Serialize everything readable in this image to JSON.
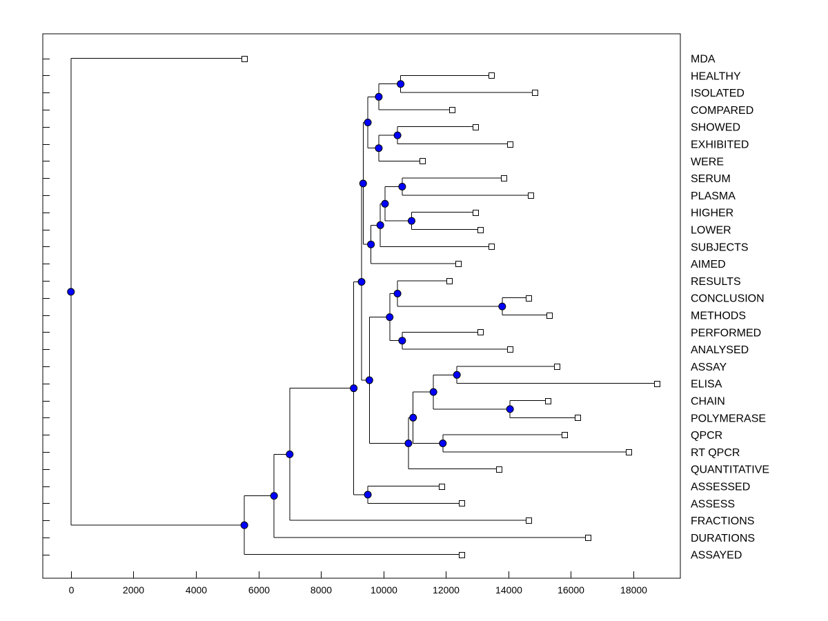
{
  "chart_data": {
    "type": "dendrogram",
    "title": "",
    "xlabel": "",
    "ylabel": "",
    "xlim": [
      -900,
      19500
    ],
    "x_ticks": [
      0,
      2000,
      4000,
      6000,
      8000,
      10000,
      12000,
      14000,
      16000,
      18000
    ],
    "grid": false,
    "leaves": [
      {
        "label": "MDA",
        "x": 5550
      },
      {
        "label": "HEALTHY",
        "x": 13450
      },
      {
        "label": "ISOLATED",
        "x": 14850
      },
      {
        "label": "COMPARED",
        "x": 12200
      },
      {
        "label": "SHOWED",
        "x": 12950
      },
      {
        "label": "EXHIBITED",
        "x": 14050
      },
      {
        "label": "WERE",
        "x": 11250
      },
      {
        "label": "SERUM",
        "x": 13850
      },
      {
        "label": "PLASMA",
        "x": 14700
      },
      {
        "label": "HIGHER",
        "x": 12950
      },
      {
        "label": "LOWER",
        "x": 13100
      },
      {
        "label": "SUBJECTS",
        "x": 13450
      },
      {
        "label": "AIMED",
        "x": 12400
      },
      {
        "label": "RESULTS",
        "x": 12100
      },
      {
        "label": "CONCLUSION",
        "x": 14650
      },
      {
        "label": "METHODS",
        "x": 15300
      },
      {
        "label": "PERFORMED",
        "x": 13100
      },
      {
        "label": "ANALYSED",
        "x": 14050
      },
      {
        "label": "ASSAY",
        "x": 15550
      },
      {
        "label": "ELISA",
        "x": 18750
      },
      {
        "label": "CHAIN",
        "x": 15250
      },
      {
        "label": "POLYMERASE",
        "x": 16200
      },
      {
        "label": "QPCR",
        "x": 15800
      },
      {
        "label": "RT QPCR",
        "x": 17850
      },
      {
        "label": "QUANTITATIVE",
        "x": 13700
      },
      {
        "label": "ASSESSED",
        "x": 11850
      },
      {
        "label": "ASSESS",
        "x": 12500
      },
      {
        "label": "FRACTIONS",
        "x": 14650
      },
      {
        "label": "DURATIONS",
        "x": 16550
      },
      {
        "label": "ASSAYED",
        "x": 12500
      }
    ],
    "merges": [
      {
        "id": "n_healthy_isolated",
        "x": 10550,
        "children": [
          "HEALTHY",
          "ISOLATED"
        ]
      },
      {
        "id": "n_hi_compared",
        "x": 9850,
        "children": [
          "n_healthy_isolated",
          "COMPARED"
        ]
      },
      {
        "id": "n_showed_exhibited",
        "x": 10450,
        "children": [
          "SHOWED",
          "EXHIBITED"
        ]
      },
      {
        "id": "n_se_were",
        "x": 9850,
        "children": [
          "n_showed_exhibited",
          "WERE"
        ]
      },
      {
        "id": "n_group_a",
        "x": 9500,
        "children": [
          "n_hi_compared",
          "n_se_were"
        ]
      },
      {
        "id": "n_serum_plasma",
        "x": 10600,
        "children": [
          "SERUM",
          "PLASMA"
        ]
      },
      {
        "id": "n_higher_lower",
        "x": 10900,
        "children": [
          "HIGHER",
          "LOWER"
        ]
      },
      {
        "id": "n_sp_hl",
        "x": 10050,
        "children": [
          "n_serum_plasma",
          "n_higher_lower"
        ]
      },
      {
        "id": "n_subjects",
        "x": 9900,
        "children": [
          "n_sp_hl",
          "SUBJECTS"
        ]
      },
      {
        "id": "n_aimed",
        "x": 9600,
        "children": [
          "n_subjects",
          "AIMED"
        ]
      },
      {
        "id": "n_group_b",
        "x": 9350,
        "children": [
          "n_group_a",
          "n_aimed"
        ]
      },
      {
        "id": "n_conclusion_methods",
        "x": 13800,
        "children": [
          "CONCLUSION",
          "METHODS"
        ]
      },
      {
        "id": "n_results",
        "x": 10450,
        "children": [
          "RESULTS",
          "n_conclusion_methods"
        ]
      },
      {
        "id": "n_performed_analysed",
        "x": 10600,
        "children": [
          "PERFORMED",
          "ANALYSED"
        ]
      },
      {
        "id": "n_group_c",
        "x": 10200,
        "children": [
          "n_results",
          "n_performed_analysed"
        ]
      },
      {
        "id": "n_assay_elisa",
        "x": 12350,
        "children": [
          "ASSAY",
          "ELISA"
        ]
      },
      {
        "id": "n_chain_polymerase",
        "x": 14050,
        "children": [
          "CHAIN",
          "POLYMERASE"
        ]
      },
      {
        "id": "n_ae_cp",
        "x": 11600,
        "children": [
          "n_assay_elisa",
          "n_chain_polymerase"
        ]
      },
      {
        "id": "n_qpcr_rtqpcr",
        "x": 11900,
        "children": [
          "QPCR",
          "RT QPCR"
        ]
      },
      {
        "id": "n_pcr_group",
        "x": 10950,
        "children": [
          "n_ae_cp",
          "n_qpcr_rtqpcr"
        ]
      },
      {
        "id": "n_quantitative",
        "x": 10800,
        "children": [
          "n_pcr_group",
          "QUANTITATIVE"
        ]
      },
      {
        "id": "n_group_d",
        "x": 9550,
        "children": [
          "n_group_c",
          "n_quantitative"
        ]
      },
      {
        "id": "n_group_e",
        "x": 9300,
        "children": [
          "n_group_b",
          "n_group_d"
        ]
      },
      {
        "id": "n_assessed_assess",
        "x": 9500,
        "children": [
          "ASSESSED",
          "ASSESS"
        ]
      },
      {
        "id": "n_group_f",
        "x": 9050,
        "children": [
          "n_group_e",
          "n_assessed_assess"
        ]
      },
      {
        "id": "n_fractions",
        "x": 7000,
        "children": [
          "n_group_f",
          "FRACTIONS"
        ]
      },
      {
        "id": "n_durations",
        "x": 6500,
        "children": [
          "n_fractions",
          "DURATIONS"
        ]
      },
      {
        "id": "n_assayed",
        "x": 5550,
        "children": [
          "n_durations",
          "ASSAYED"
        ]
      },
      {
        "id": "n_root",
        "x": 0,
        "children": [
          "MDA",
          "n_assayed"
        ]
      }
    ]
  }
}
